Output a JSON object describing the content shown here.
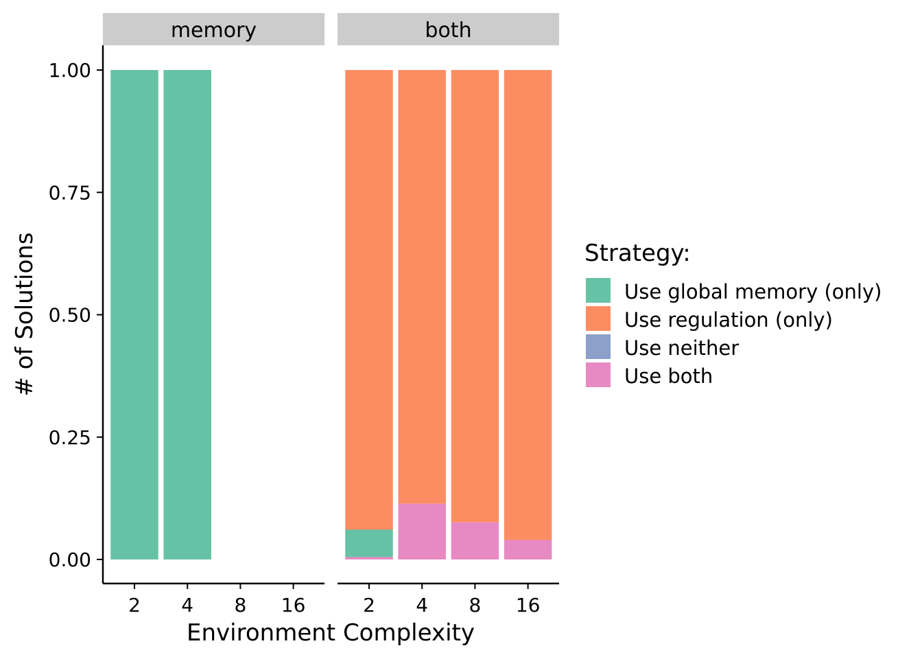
{
  "chart_data": {
    "type": "bar",
    "stacked": true,
    "xlabel": "Environment Complexity",
    "ylabel": "# of Solutions",
    "ylim": [
      0,
      1
    ],
    "yticks": [
      "0.00",
      "0.25",
      "0.50",
      "0.75",
      "1.00"
    ],
    "ytick_values": [
      0,
      0.25,
      0.5,
      0.75,
      1.0
    ],
    "grid": false,
    "legend": {
      "title": "Strategy:",
      "position": "right",
      "entries": [
        {
          "label": "Use global memory (only)",
          "color": "#66C2A5"
        },
        {
          "label": "Use regulation (only)",
          "color": "#FC8D62"
        },
        {
          "label": "Use neither",
          "color": "#8DA0CB"
        },
        {
          "label": "Use both",
          "color": "#E78AC3"
        }
      ]
    },
    "panels": [
      {
        "strip": "memory",
        "categories": [
          "2",
          "4",
          "8",
          "16"
        ],
        "series": [
          {
            "name": "Use global memory (only)",
            "color": "#66C2A5",
            "values": [
              1.0,
              1.0,
              0,
              0
            ]
          },
          {
            "name": "Use regulation (only)",
            "color": "#FC8D62",
            "values": [
              0,
              0,
              0,
              0
            ]
          },
          {
            "name": "Use neither",
            "color": "#8DA0CB",
            "values": [
              0,
              0,
              0,
              0
            ]
          },
          {
            "name": "Use both",
            "color": "#E78AC3",
            "values": [
              0,
              0,
              0,
              0
            ]
          }
        ]
      },
      {
        "strip": "both",
        "categories": [
          "2",
          "4",
          "8",
          "16"
        ],
        "series": [
          {
            "name": "Use global memory (only)",
            "color": "#66C2A5",
            "values": [
              0.056,
              0,
              0,
              0
            ]
          },
          {
            "name": "Use regulation (only)",
            "color": "#FC8D62",
            "values": [
              0.939,
              0.886,
              0.924,
              0.96
            ]
          },
          {
            "name": "Use neither",
            "color": "#8DA0CB",
            "values": [
              0,
              0,
              0,
              0
            ]
          },
          {
            "name": "Use both",
            "color": "#E78AC3",
            "values": [
              0.005,
              0.114,
              0.076,
              0.04
            ]
          }
        ]
      }
    ]
  }
}
